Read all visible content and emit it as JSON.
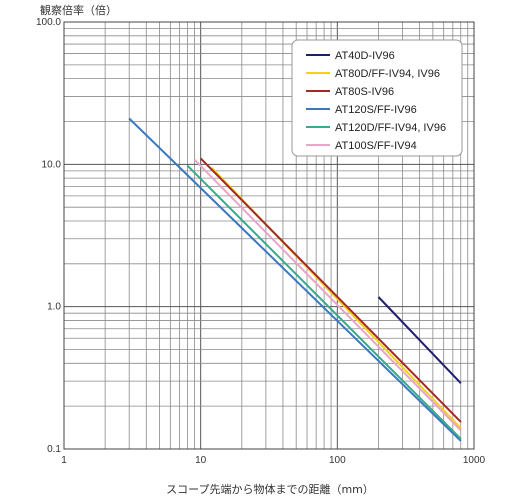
{
  "chart_data": {
    "type": "line",
    "title": "",
    "xlabel": "スコープ先端から物体までの距離（mm）",
    "ylabel": "観察倍率（倍）",
    "xscale": "log",
    "yscale": "log",
    "xlim": [
      1,
      1000
    ],
    "ylim": [
      0.1,
      100
    ],
    "grid": true,
    "legend_position": "top-right",
    "x_tick_labels": [
      "1",
      "10",
      "100",
      "1000"
    ],
    "y_tick_labels": [
      "0.1",
      "1.0",
      "10.0",
      "100.0"
    ],
    "series": [
      {
        "name": "AT40D-IV96",
        "color": "#1f1f6e",
        "points": [
          [
            200,
            1.17
          ],
          [
            800,
            0.29
          ]
        ]
      },
      {
        "name": "AT80D/FF-IV94, IV96",
        "color": "#f2d21b",
        "points": [
          [
            12,
            9.5
          ],
          [
            800,
            0.14
          ]
        ]
      },
      {
        "name": "AT80S-IV96",
        "color": "#a32a22",
        "points": [
          [
            10,
            11.0
          ],
          [
            800,
            0.155
          ]
        ]
      },
      {
        "name": "AT120S/FF-IV96",
        "color": "#3a78c0",
        "points": [
          [
            3,
            21.0
          ],
          [
            800,
            0.114
          ]
        ]
      },
      {
        "name": "AT120D/FF-IV94, IV96",
        "color": "#3aaa88",
        "points": [
          [
            8,
            9.8
          ],
          [
            800,
            0.118
          ]
        ]
      },
      {
        "name": "AT100S/FF-IV94",
        "color": "#e8a6c8",
        "points": [
          [
            9,
            10.8
          ],
          [
            800,
            0.135
          ]
        ]
      }
    ]
  }
}
